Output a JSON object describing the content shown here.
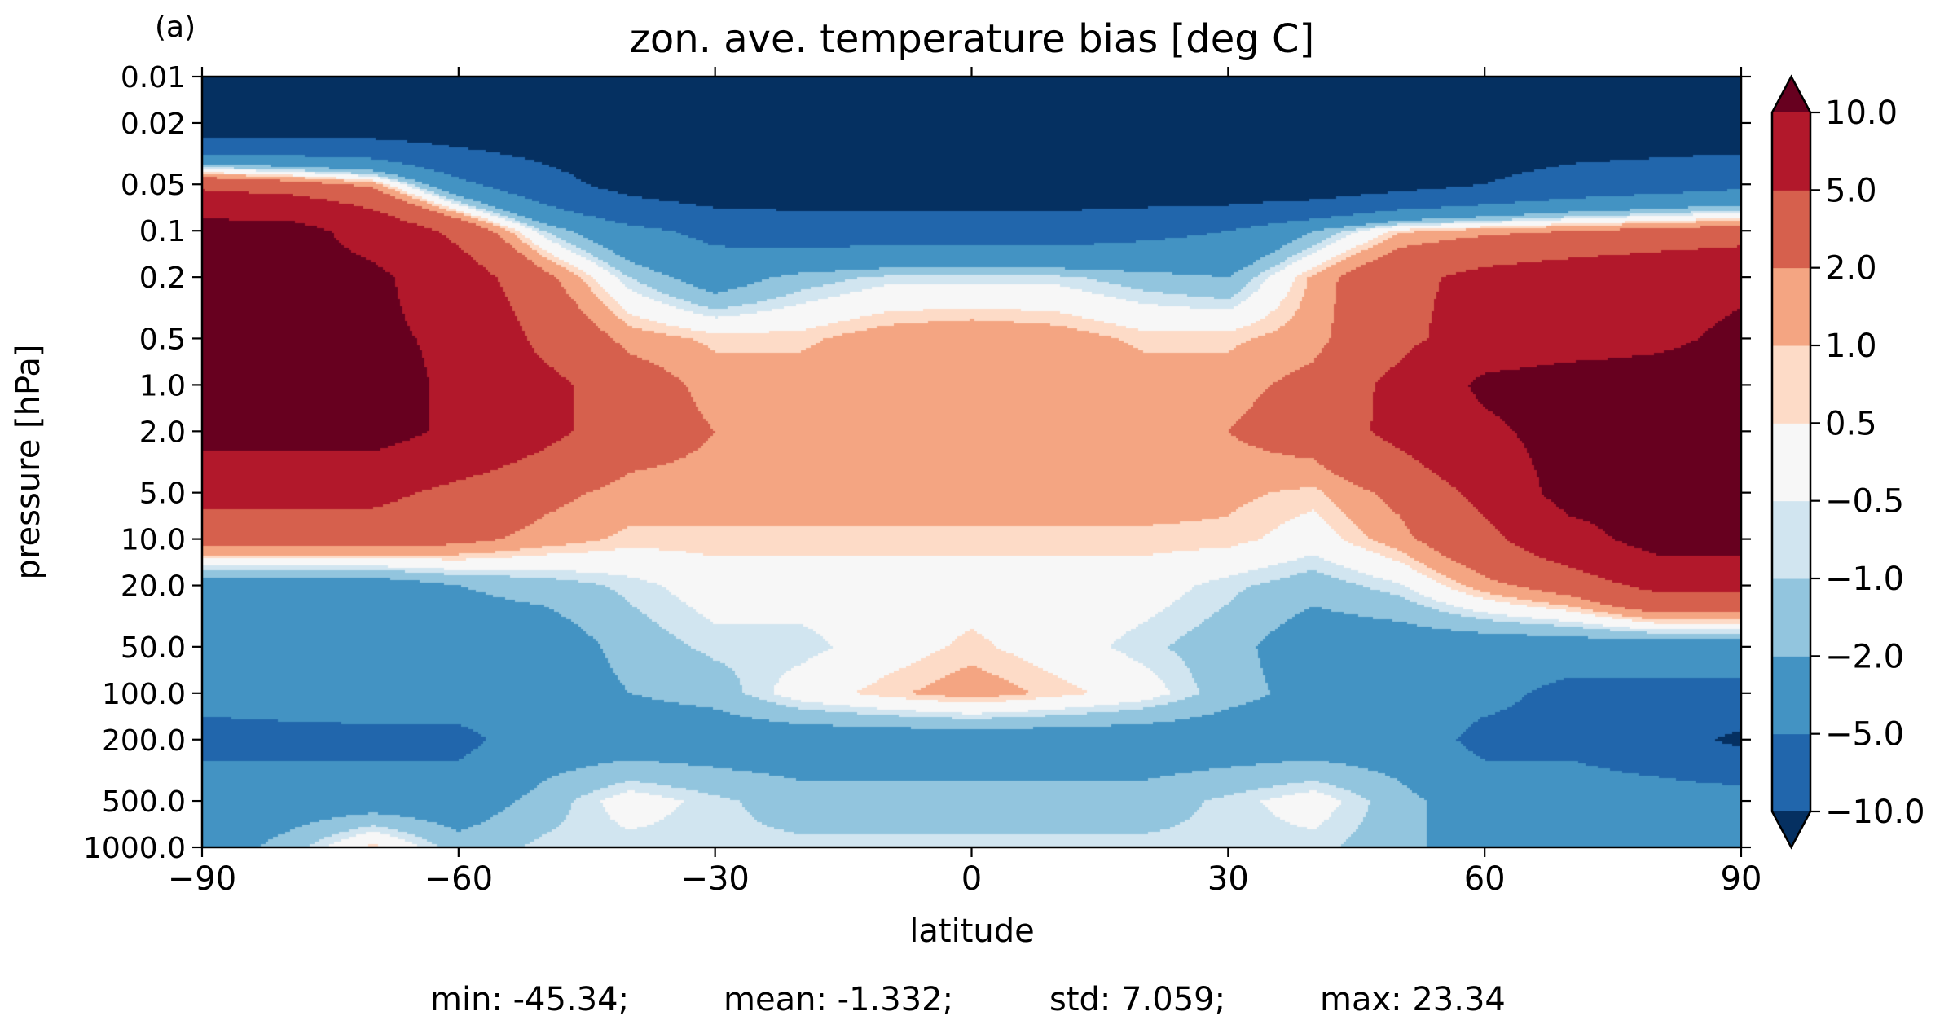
{
  "chart_data": {
    "type": "heatmap",
    "panel_label": "(a)",
    "title": "zon. ave. temperature bias [deg C]",
    "xlabel": "latitude",
    "ylabel": "pressure [hPa]",
    "xlim": [
      -90,
      90
    ],
    "ylim": [
      0.01,
      1000.0
    ],
    "y_scale": "log",
    "y_inverted": true,
    "xticks": [
      -90,
      -60,
      -30,
      0,
      30,
      60,
      90
    ],
    "xtick_labels": [
      "−90",
      "−60",
      "−30",
      "0",
      "30",
      "60",
      "90"
    ],
    "yticks": [
      0.01,
      0.02,
      0.05,
      0.1,
      0.2,
      0.5,
      1.0,
      2.0,
      5.0,
      10.0,
      20.0,
      50.0,
      100.0,
      200.0,
      500.0,
      1000.0
    ],
    "ytick_labels": [
      "0.01",
      "0.02",
      "0.05",
      "0.1",
      "0.2",
      "0.5",
      "1.0",
      "2.0",
      "5.0",
      "10.0",
      "20.0",
      "50.0",
      "100.0",
      "200.0",
      "500.0",
      "1000.0"
    ],
    "colorbar": {
      "levels": [
        -10.0,
        -5.0,
        -2.0,
        -1.0,
        -0.5,
        0.5,
        1.0,
        2.0,
        5.0,
        10.0
      ],
      "tick_labels": [
        "−10.0",
        "−5.0",
        "−2.0",
        "−1.0",
        "−0.5",
        "0.5",
        "1.0",
        "2.0",
        "5.0",
        "10.0"
      ],
      "colors": [
        "#053061",
        "#2166ac",
        "#4393c3",
        "#92c5de",
        "#d1e5f0",
        "#f7f7f7",
        "#fddbc7",
        "#f4a582",
        "#d6604d",
        "#b2182b",
        "#67001f"
      ],
      "extend": "both"
    },
    "stats": {
      "min": "min: -45.34;",
      "mean": "mean: -1.332;",
      "std": "std: 7.059;",
      "max": "max: 23.34"
    },
    "field": {
      "lats": [
        -90,
        -80,
        -70,
        -60,
        -50,
        -40,
        -30,
        -20,
        -10,
        0,
        10,
        20,
        30,
        40,
        50,
        60,
        70,
        80,
        90
      ],
      "pressures": [
        0.01,
        0.02,
        0.05,
        0.1,
        0.2,
        0.5,
        1.0,
        2.0,
        5.0,
        10.0,
        20.0,
        50.0,
        100.0,
        200.0,
        500.0,
        1000.0
      ],
      "values": [
        [
          -14,
          -14,
          -14,
          -14,
          -14,
          -14,
          -14,
          -14,
          -14,
          -14,
          -14,
          -14,
          -14,
          -14,
          -14,
          -14,
          -14,
          -14,
          -14
        ],
        [
          -14,
          -14,
          -14,
          -14,
          -14,
          -14,
          -14,
          -14,
          -14,
          -14,
          -14,
          -14,
          -14,
          -14,
          -14,
          -14,
          -14,
          -14,
          -14
        ],
        [
          4,
          3,
          1.5,
          -4,
          -8,
          -12,
          -14,
          -14,
          -14,
          -14,
          -14,
          -14,
          -14,
          -14,
          -12,
          -10,
          -8,
          -7,
          -6
        ],
        [
          12,
          12,
          8,
          4,
          -1,
          -4,
          -6,
          -7,
          -7,
          -7,
          -7,
          -6,
          -5,
          -2,
          0.8,
          1.5,
          2,
          2.5,
          3
        ],
        [
          12,
          12,
          11,
          7,
          2.5,
          -1,
          -3,
          -1.5,
          -0.8,
          -0.8,
          -0.8,
          -1.5,
          -2,
          1.2,
          4,
          6,
          7,
          8,
          9
        ],
        [
          12,
          12,
          11,
          9,
          4,
          1.5,
          0.8,
          0.8,
          1.5,
          1.8,
          1.5,
          0.8,
          0.8,
          1.5,
          4,
          7,
          8,
          9,
          11
        ],
        [
          12,
          12,
          12,
          9,
          6,
          3,
          1.5,
          1.5,
          1.8,
          1.8,
          1.8,
          1.5,
          1.5,
          2.5,
          6,
          11,
          12,
          12,
          12
        ],
        [
          12,
          12,
          12,
          9,
          6,
          3,
          2,
          1.5,
          1.2,
          1.2,
          1.2,
          1.5,
          2,
          3,
          6,
          9,
          12,
          12,
          12
        ],
        [
          6,
          6,
          6,
          4,
          2.5,
          1.5,
          1.5,
          1.5,
          1.5,
          1.5,
          1.5,
          1.5,
          1.2,
          0.8,
          2.5,
          6,
          12,
          12,
          12
        ],
        [
          3,
          3,
          3,
          2.5,
          1.5,
          0.8,
          0.8,
          0.8,
          0.8,
          0.8,
          0.8,
          0.8,
          0.8,
          0,
          1.5,
          4,
          8,
          12,
          12
        ],
        [
          -3,
          -3,
          -3,
          -2,
          -1.5,
          -0.8,
          0,
          0,
          0,
          0,
          0,
          0,
          -0.8,
          -1.5,
          -0.6,
          1.5,
          3,
          6,
          6
        ],
        [
          -3,
          -3,
          -3,
          -3,
          -3,
          -1.5,
          -0.8,
          -0.8,
          0,
          0.7,
          0,
          -0.8,
          -1.5,
          -3,
          -3,
          -3,
          -3,
          -3,
          -3
        ],
        [
          -4,
          -3.5,
          -3,
          -3,
          -3,
          -2,
          -1.5,
          0,
          0.8,
          1.5,
          0.8,
          0,
          -1.5,
          -2.5,
          -3,
          -4,
          -6,
          -6,
          -6
        ],
        [
          -6,
          -6,
          -6,
          -6,
          -3,
          -3,
          -3,
          -3,
          -3,
          -3,
          -3,
          -3,
          -3,
          -3,
          -3,
          -6,
          -6,
          -8,
          -11
        ],
        [
          -3,
          -3,
          -3,
          -3,
          -1.5,
          0,
          -0.8,
          -1.5,
          -1.5,
          -1.5,
          -1.5,
          -1.5,
          -0.8,
          0,
          -1.5,
          -3,
          -3,
          -3,
          -3
        ],
        [
          -3,
          -1.5,
          0.8,
          -1.5,
          -0.8,
          -0.8,
          -0.8,
          -0.8,
          -0.8,
          -0.8,
          -0.8,
          -0.8,
          -0.8,
          -0.8,
          -1.5,
          -3,
          -3,
          -3,
          -3
        ]
      ]
    }
  }
}
